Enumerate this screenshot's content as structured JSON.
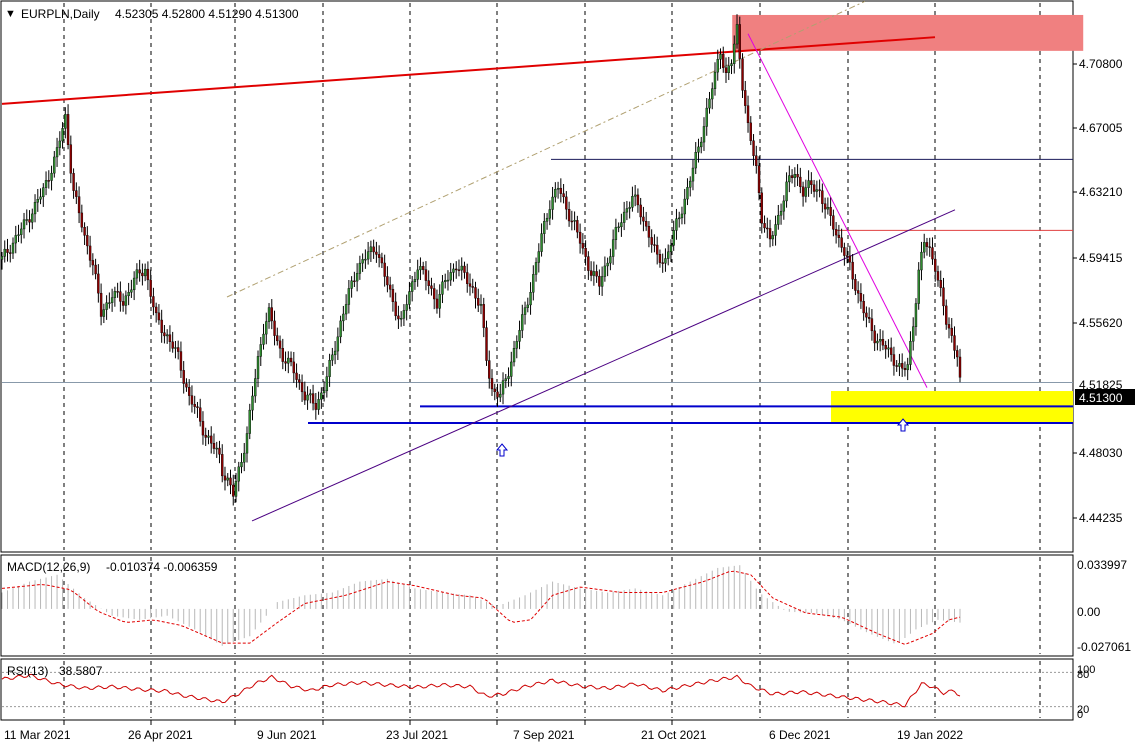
{
  "header": {
    "triangle": "▼",
    "symbol": "EURPLN,Daily",
    "ohlc": "4.52305 4.52800 4.51290 4.51300"
  },
  "colors": {
    "candle_up": "#2f8a2f",
    "candle_down": "#8b0000",
    "support_blue": "#0000cc",
    "resistance_red": "#e00000",
    "resistance_zone": "#f08080",
    "support_zone": "#ffff00",
    "macd_signal": "#e00000",
    "rsi_line": "#cc0000",
    "channel_line": "#4b0082",
    "down_trendline": "#e000e0"
  },
  "chart_data": [
    {
      "type": "candlestick",
      "symbol": "EURPLN",
      "timeframe": "Daily",
      "last_price_label": "4.51300",
      "y_ticks": [
        "4.70800",
        "4.67005",
        "4.63210",
        "4.59415",
        "4.55620",
        "4.51825",
        "4.48030",
        "4.44235"
      ],
      "x_ticks": [
        "11 Mar 2021",
        "26 Apr 2021",
        "9 Jun 2021",
        "23 Jul 2021",
        "7 Sep 2021",
        "21 Oct 2021",
        "6 Dec 2021",
        "19 Jan 2022"
      ],
      "ylim": [
        4.415,
        4.735
      ],
      "grid": "vertical-dashed",
      "close_path": [
        [
          0,
          4.585
        ],
        [
          8,
          4.605
        ],
        [
          15,
          4.625
        ],
        [
          20,
          4.648
        ],
        [
          23,
          4.668
        ],
        [
          26,
          4.625
        ],
        [
          30,
          4.598
        ],
        [
          33,
          4.583
        ],
        [
          36,
          4.553
        ],
        [
          40,
          4.565
        ],
        [
          44,
          4.56
        ],
        [
          48,
          4.573
        ],
        [
          52,
          4.58
        ],
        [
          56,
          4.55
        ],
        [
          60,
          4.54
        ],
        [
          64,
          4.528
        ],
        [
          68,
          4.504
        ],
        [
          71,
          4.495
        ],
        [
          74,
          4.482
        ],
        [
          76,
          4.477
        ],
        [
          79,
          4.47
        ],
        [
          80,
          4.462
        ],
        [
          82,
          4.455
        ],
        [
          84,
          4.447
        ],
        [
          86,
          4.462
        ],
        [
          89,
          4.482
        ],
        [
          91,
          4.505
        ],
        [
          93,
          4.527
        ],
        [
          95,
          4.545
        ],
        [
          97,
          4.553
        ],
        [
          99,
          4.542
        ],
        [
          102,
          4.528
        ],
        [
          106,
          4.52
        ],
        [
          110,
          4.505
        ],
        [
          114,
          4.5
        ],
        [
          117,
          4.51
        ],
        [
          120,
          4.528
        ],
        [
          123,
          4.548
        ],
        [
          126,
          4.565
        ],
        [
          129,
          4.58
        ],
        [
          133,
          4.588
        ],
        [
          136,
          4.592
        ],
        [
          139,
          4.575
        ],
        [
          142,
          4.56
        ],
        [
          145,
          4.548
        ],
        [
          148,
          4.565
        ],
        [
          151,
          4.582
        ],
        [
          155,
          4.57
        ],
        [
          158,
          4.56
        ],
        [
          161,
          4.572
        ],
        [
          165,
          4.582
        ],
        [
          168,
          4.575
        ],
        [
          171,
          4.568
        ],
        [
          174,
          4.556
        ],
        [
          176,
          4.527
        ],
        [
          178,
          4.509
        ],
        [
          181,
          4.505
        ],
        [
          184,
          4.52
        ],
        [
          187,
          4.538
        ],
        [
          190,
          4.555
        ],
        [
          193,
          4.575
        ],
        [
          196,
          4.598
        ],
        [
          199,
          4.618
        ],
        [
          202,
          4.627
        ],
        [
          205,
          4.615
        ],
        [
          208,
          4.605
        ],
        [
          211,
          4.59
        ],
        [
          214,
          4.578
        ],
        [
          217,
          4.57
        ],
        [
          220,
          4.585
        ],
        [
          223,
          4.6
        ],
        [
          226,
          4.612
        ],
        [
          229,
          4.622
        ],
        [
          232,
          4.612
        ],
        [
          235,
          4.6
        ],
        [
          238,
          4.585
        ],
        [
          241,
          4.585
        ],
        [
          244,
          4.6
        ],
        [
          247,
          4.615
        ],
        [
          250,
          4.632
        ],
        [
          253,
          4.65
        ],
        [
          256,
          4.672
        ],
        [
          259,
          4.692
        ],
        [
          261,
          4.708
        ],
        [
          263,
          4.693
        ],
        [
          265,
          4.7
        ],
        [
          267,
          4.72
        ],
        [
          269,
          4.688
        ],
        [
          271,
          4.662
        ],
        [
          274,
          4.638
        ],
        [
          276,
          4.61
        ],
        [
          279,
          4.595
        ],
        [
          282,
          4.61
        ],
        [
          285,
          4.628
        ],
        [
          288,
          4.636
        ],
        [
          291,
          4.625
        ],
        [
          294,
          4.628
        ],
        [
          297,
          4.625
        ],
        [
          299,
          4.615
        ],
        [
          302,
          4.605
        ],
        [
          305,
          4.593
        ],
        [
          308,
          4.58
        ],
        [
          311,
          4.565
        ],
        [
          314,
          4.55
        ],
        [
          317,
          4.54
        ],
        [
          320,
          4.535
        ],
        [
          323,
          4.528
        ],
        [
          325,
          4.525
        ],
        [
          327,
          4.52
        ],
        [
          329,
          4.522
        ],
        [
          331,
          4.548
        ],
        [
          333,
          4.578
        ],
        [
          335,
          4.595
        ],
        [
          337,
          4.59
        ],
        [
          339,
          4.582
        ],
        [
          341,
          4.565
        ],
        [
          343,
          4.548
        ],
        [
          345,
          4.54
        ],
        [
          347,
          4.53
        ],
        [
          348,
          4.513
        ]
      ],
      "overlays": {
        "horizontal_levels": [
          4.6435,
          4.602,
          4.513,
          4.499,
          4.4893
        ],
        "resistance_line": [
          [
            0,
            4.676
          ],
          [
            343,
            4.715
          ]
        ],
        "resistance_zone": {
          "x": [
            250,
            325
          ],
          "y": [
            4.707,
            4.728
          ]
        },
        "support_zone": {
          "x": [
            305,
            392
          ],
          "y": [
            4.489,
            4.508
          ]
        },
        "channel_lower": [
          [
            90,
            4.432
          ],
          [
            350,
            4.614
          ]
        ],
        "channel_upper_dashed": [
          [
            82,
            4.563
          ],
          [
            307,
            4.736
          ]
        ],
        "down_trendline": [
          [
            274,
            4.717
          ],
          [
            340,
            4.51
          ]
        ],
        "arrows_up": [
          [
            184,
            4.487
          ],
          [
            331,
            4.5
          ]
        ]
      }
    },
    {
      "type": "histogram+line",
      "name": "MACD(12,26,9)",
      "values_label": "-0.010374 -0.006359",
      "y_ticks": [
        "0.033997",
        "0.00",
        "-0.027061"
      ],
      "ylim": [
        -0.033,
        0.038
      ],
      "histogram": [
        [
          0,
          0.012
        ],
        [
          10,
          0.02
        ],
        [
          20,
          0.025
        ],
        [
          30,
          0.008
        ],
        [
          40,
          -0.005
        ],
        [
          50,
          -0.008
        ],
        [
          60,
          -0.005
        ],
        [
          70,
          -0.015
        ],
        [
          80,
          -0.027
        ],
        [
          90,
          -0.02
        ],
        [
          100,
          0.005
        ],
        [
          110,
          0.01
        ],
        [
          120,
          0.012
        ],
        [
          130,
          0.02
        ],
        [
          140,
          0.022
        ],
        [
          150,
          0.015
        ],
        [
          160,
          0.012
        ],
        [
          170,
          0.01
        ],
        [
          180,
          0.002
        ],
        [
          190,
          0.01
        ],
        [
          200,
          0.02
        ],
        [
          210,
          0.015
        ],
        [
          220,
          0.012
        ],
        [
          230,
          0.015
        ],
        [
          240,
          0.01
        ],
        [
          250,
          0.02
        ],
        [
          260,
          0.03
        ],
        [
          268,
          0.032
        ],
        [
          275,
          0.012
        ],
        [
          285,
          -0.002
        ],
        [
          295,
          -0.003
        ],
        [
          305,
          -0.008
        ],
        [
          315,
          -0.018
        ],
        [
          325,
          -0.026
        ],
        [
          332,
          -0.015
        ],
        [
          340,
          -0.008
        ],
        [
          348,
          -0.01
        ]
      ],
      "signal": [
        [
          0,
          0.015
        ],
        [
          15,
          0.018
        ],
        [
          25,
          0.014
        ],
        [
          35,
          -0.002
        ],
        [
          45,
          -0.01
        ],
        [
          55,
          -0.008
        ],
        [
          65,
          -0.012
        ],
        [
          80,
          -0.025
        ],
        [
          90,
          -0.025
        ],
        [
          100,
          -0.01
        ],
        [
          110,
          0.004
        ],
        [
          125,
          0.01
        ],
        [
          140,
          0.02
        ],
        [
          150,
          0.017
        ],
        [
          165,
          0.01
        ],
        [
          175,
          0.008
        ],
        [
          185,
          -0.01
        ],
        [
          192,
          -0.008
        ],
        [
          200,
          0.01
        ],
        [
          210,
          0.016
        ],
        [
          225,
          0.012
        ],
        [
          240,
          0.012
        ],
        [
          255,
          0.02
        ],
        [
          265,
          0.028
        ],
        [
          272,
          0.025
        ],
        [
          280,
          0.008
        ],
        [
          292,
          -0.003
        ],
        [
          305,
          -0.006
        ],
        [
          318,
          -0.018
        ],
        [
          328,
          -0.026
        ],
        [
          338,
          -0.018
        ],
        [
          344,
          -0.008
        ],
        [
          348,
          -0.006
        ]
      ]
    },
    {
      "type": "line",
      "name": "RSI(13)",
      "value_label": "38.5807",
      "y_ticks": [
        "100",
        "80",
        "20",
        "0"
      ],
      "ylim": [
        0,
        100
      ],
      "values": [
        [
          0,
          68
        ],
        [
          10,
          75
        ],
        [
          20,
          60
        ],
        [
          30,
          52
        ],
        [
          40,
          55
        ],
        [
          50,
          50
        ],
        [
          60,
          47
        ],
        [
          65,
          40
        ],
        [
          70,
          36
        ],
        [
          80,
          28
        ],
        [
          85,
          40
        ],
        [
          92,
          60
        ],
        [
          98,
          72
        ],
        [
          105,
          56
        ],
        [
          112,
          48
        ],
        [
          120,
          58
        ],
        [
          130,
          62
        ],
        [
          140,
          58
        ],
        [
          150,
          54
        ],
        [
          160,
          58
        ],
        [
          170,
          55
        ],
        [
          176,
          38
        ],
        [
          182,
          42
        ],
        [
          190,
          55
        ],
        [
          200,
          66
        ],
        [
          210,
          56
        ],
        [
          220,
          52
        ],
        [
          230,
          60
        ],
        [
          240,
          48
        ],
        [
          250,
          58
        ],
        [
          260,
          67
        ],
        [
          267,
          72
        ],
        [
          272,
          56
        ],
        [
          280,
          42
        ],
        [
          290,
          46
        ],
        [
          300,
          40
        ],
        [
          310,
          34
        ],
        [
          320,
          28
        ],
        [
          328,
          22
        ],
        [
          334,
          60
        ],
        [
          338,
          55
        ],
        [
          342,
          44
        ],
        [
          346,
          48
        ],
        [
          348,
          38.6
        ]
      ]
    }
  ]
}
